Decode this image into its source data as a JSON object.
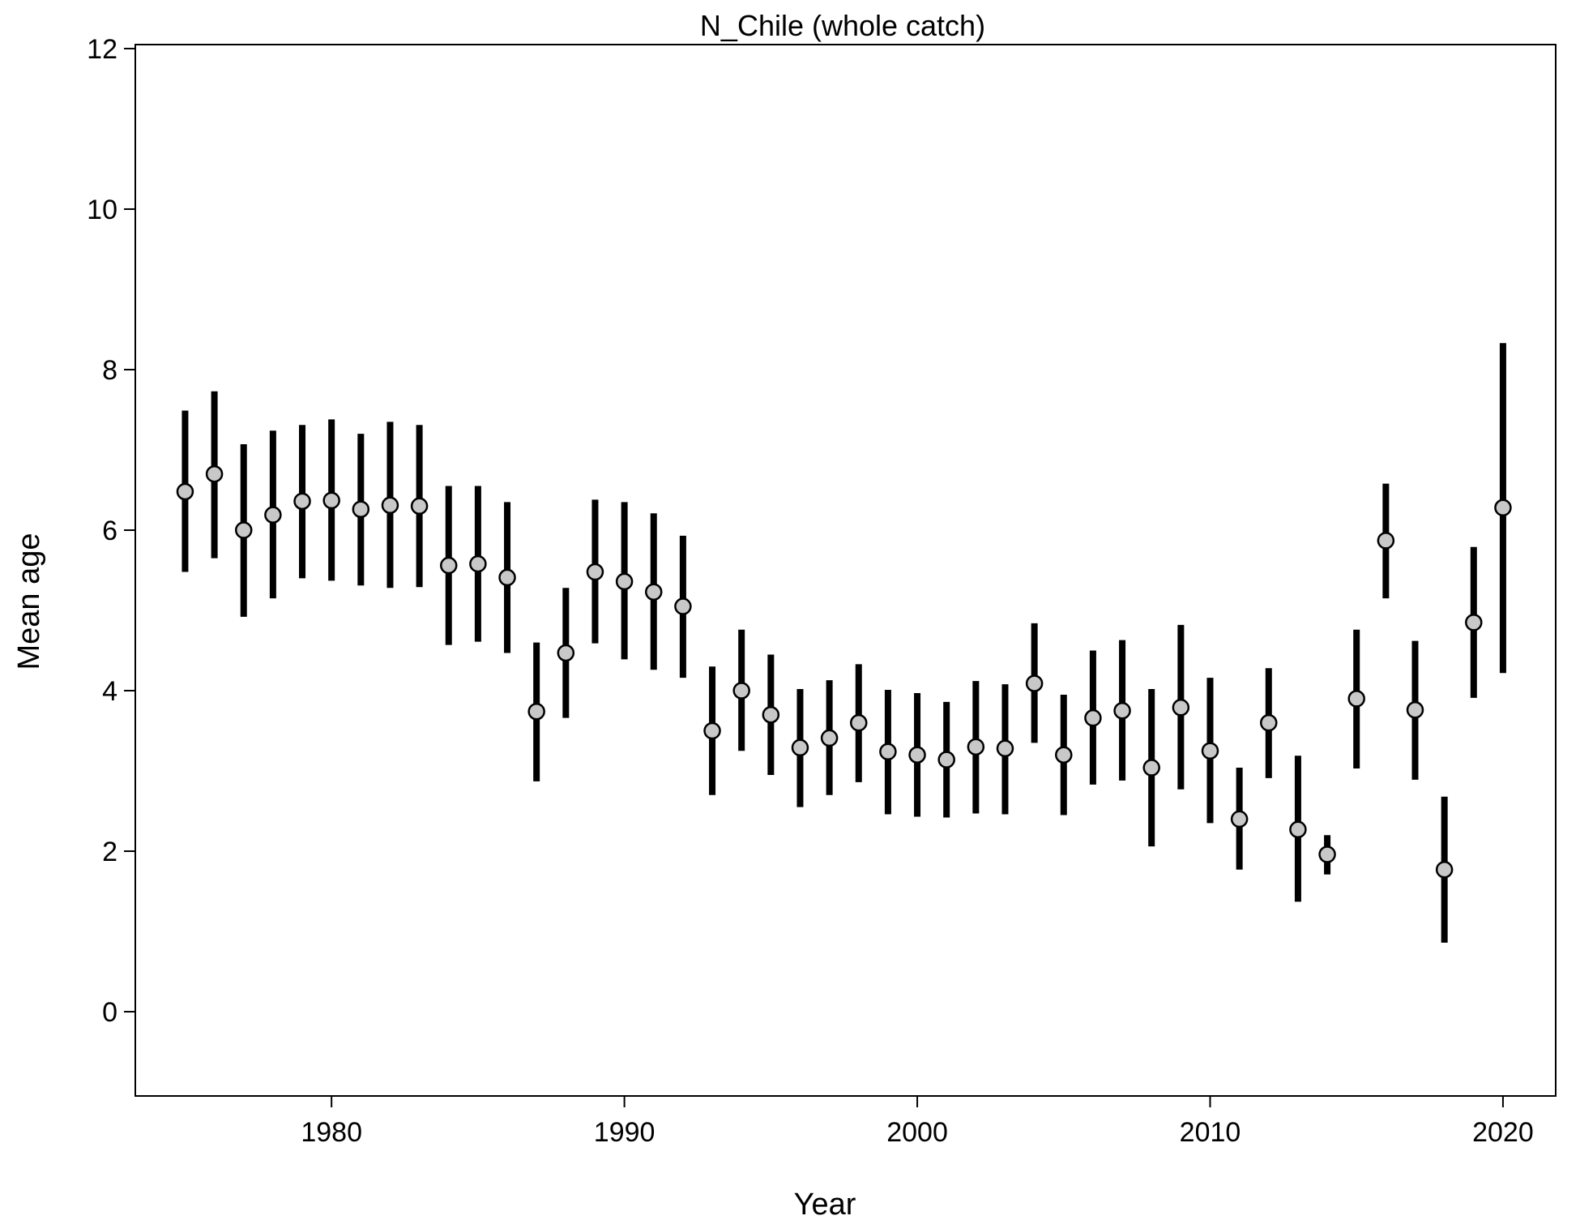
{
  "chart_data": {
    "type": "scatter",
    "title": "N_Chile (whole catch)",
    "xlabel": "Year",
    "ylabel": "Mean age",
    "xlim": [
      1973.3,
      2021.8
    ],
    "ylim": [
      -1.05,
      12.05
    ],
    "x_ticks": [
      1980,
      1990,
      2000,
      2010,
      2020
    ],
    "y_ticks": [
      0,
      2,
      4,
      6,
      8,
      10,
      12
    ],
    "grid": false,
    "colors": {
      "interval": "#000000",
      "point_fill": "#c8c8c8",
      "point_stroke": "#000000"
    },
    "series": [
      {
        "x": [
          1975,
          1976,
          1977,
          1978,
          1979,
          1980,
          1981,
          1982,
          1983,
          1984,
          1985,
          1986,
          1987,
          1988,
          1989,
          1990,
          1991,
          1992,
          1993,
          1994,
          1995,
          1996,
          1997,
          1998,
          1999,
          2000,
          2001,
          2002,
          2003,
          2004,
          2005,
          2006,
          2007,
          2008,
          2009,
          2010,
          2011,
          2012,
          2013,
          2014,
          2015,
          2016,
          2017,
          2018,
          2019,
          2020
        ],
        "y": [
          6.48,
          6.7,
          6.0,
          6.19,
          6.36,
          6.37,
          6.26,
          6.31,
          6.3,
          5.56,
          5.58,
          5.41,
          3.74,
          4.47,
          5.48,
          5.36,
          5.23,
          5.05,
          3.5,
          4.0,
          3.7,
          3.29,
          3.41,
          3.6,
          3.24,
          3.2,
          3.14,
          3.3,
          3.28,
          4.09,
          3.2,
          3.66,
          3.75,
          3.04,
          3.79,
          3.25,
          2.4,
          3.6,
          2.27,
          1.96,
          3.9,
          5.87,
          3.76,
          1.77,
          4.85,
          6.28
        ],
        "lower": [
          5.48,
          5.65,
          4.92,
          5.15,
          5.4,
          5.37,
          5.31,
          5.28,
          5.29,
          4.57,
          4.61,
          4.47,
          2.87,
          3.66,
          4.59,
          4.39,
          4.26,
          4.16,
          2.7,
          3.25,
          2.95,
          2.55,
          2.7,
          2.86,
          2.46,
          2.43,
          2.42,
          2.47,
          2.46,
          3.35,
          2.45,
          2.83,
          2.88,
          2.06,
          2.77,
          2.35,
          1.77,
          2.91,
          1.37,
          1.71,
          3.03,
          5.15,
          2.89,
          0.86,
          3.91,
          4.22
        ],
        "upper": [
          7.49,
          7.73,
          7.07,
          7.24,
          7.31,
          7.38,
          7.2,
          7.35,
          7.31,
          6.55,
          6.55,
          6.35,
          4.6,
          5.28,
          6.38,
          6.35,
          6.21,
          5.93,
          4.3,
          4.76,
          4.45,
          4.02,
          4.13,
          4.33,
          4.01,
          3.97,
          3.86,
          4.12,
          4.08,
          4.84,
          3.95,
          4.5,
          4.63,
          4.02,
          4.82,
          4.16,
          3.04,
          4.28,
          3.19,
          2.2,
          4.76,
          6.58,
          4.62,
          2.68,
          5.79,
          8.33
        ]
      }
    ]
  }
}
